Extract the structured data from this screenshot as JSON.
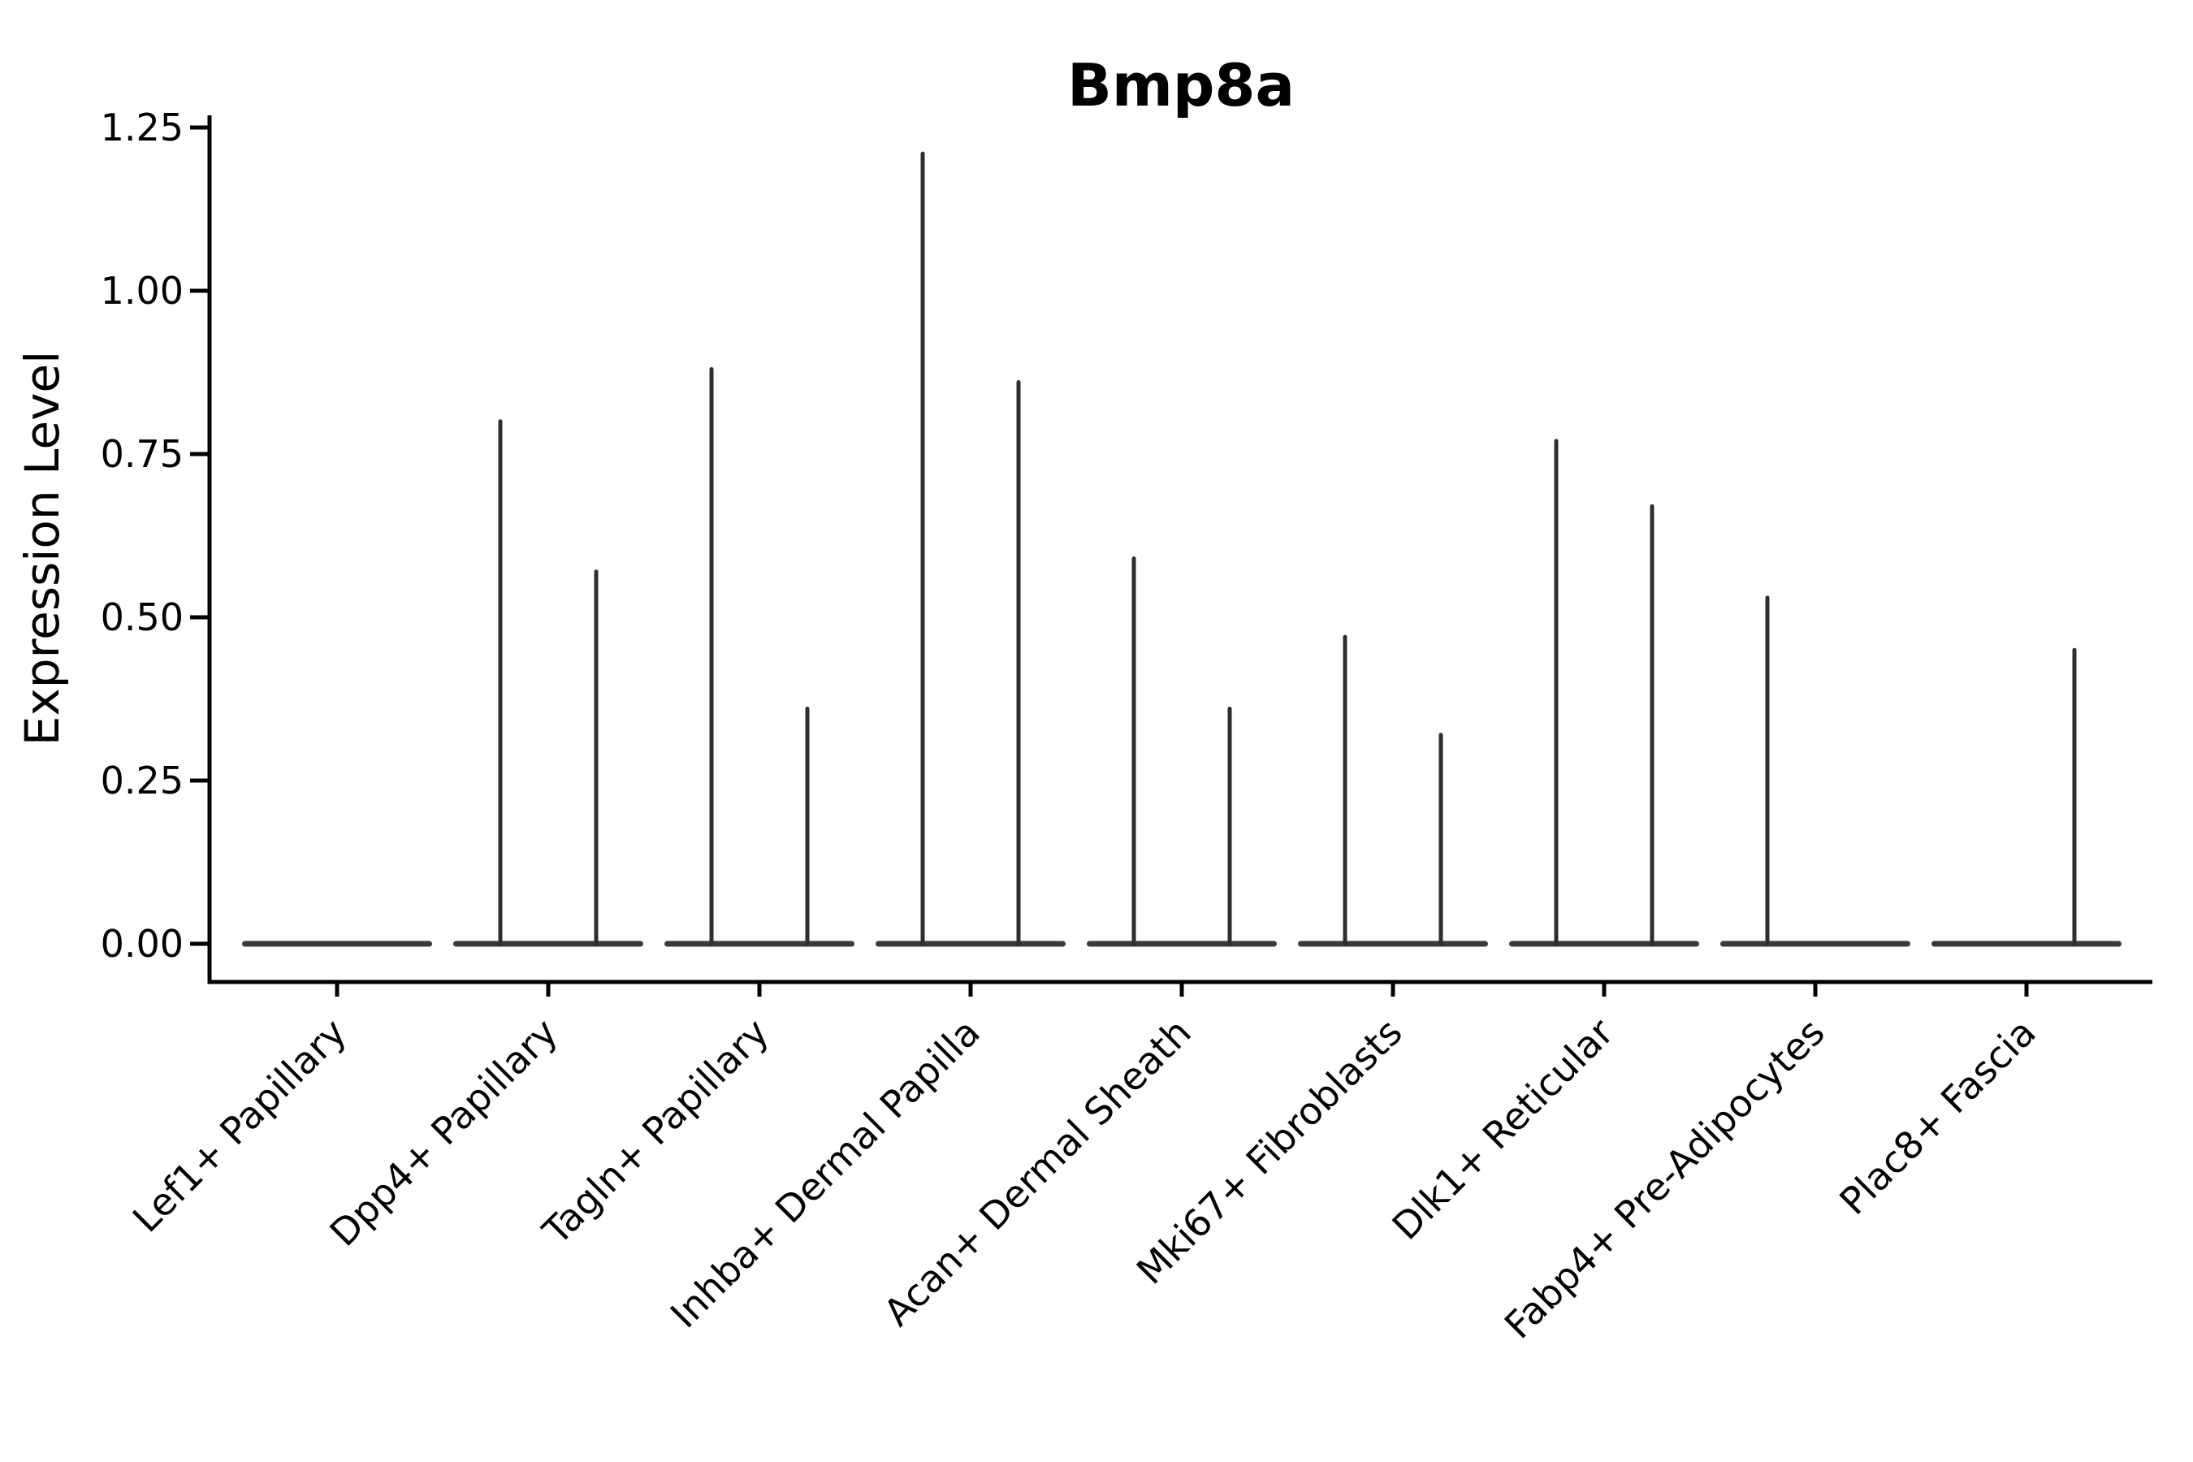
{
  "figure": {
    "background": "#ffffff"
  },
  "chart_data": {
    "type": "violin",
    "title": "Bmp8a",
    "ylabel": "Expression Level",
    "xlabel": "",
    "categories": [
      "Lef1+ Papillary",
      "Dpp4+ Papillary",
      "Tagln+ Papillary",
      "Inhba+ Dermal Papilla",
      "Acan+ Dermal Sheath",
      "Mki67+ Fibroblasts",
      "Dlk1+ Reticular",
      "Fabp4+ Pre-Adipocytes",
      "Plac8+ Fascia"
    ],
    "series": [
      {
        "name": "left-violin-max",
        "values": [
          0,
          0.8,
          0.88,
          1.21,
          0.59,
          0.47,
          0.77,
          0.53,
          0
        ]
      },
      {
        "name": "right-violin-max",
        "values": [
          0,
          0.57,
          0.36,
          0.86,
          0.36,
          0.32,
          0.67,
          0,
          0.45
        ]
      }
    ],
    "shape_note": "Each category holds two ultra-thin violins: a flat wide base at 0 and a thin spike rising to the max value (0 = flat base only, no spike)",
    "yticks": [
      0.0,
      0.25,
      0.5,
      0.75,
      1.0,
      1.25
    ],
    "ytick_labels": [
      "0.00",
      "0.25",
      "0.50",
      "0.75",
      "1.00",
      "1.25"
    ],
    "ylim": [
      0,
      1.25
    ],
    "grid": false,
    "legend": null,
    "colors": {
      "violin_spike": "#2e2e2e",
      "violin_base": "#3a3a3a",
      "axis": "#000000",
      "text": "#000000",
      "background": "#ffffff"
    }
  }
}
